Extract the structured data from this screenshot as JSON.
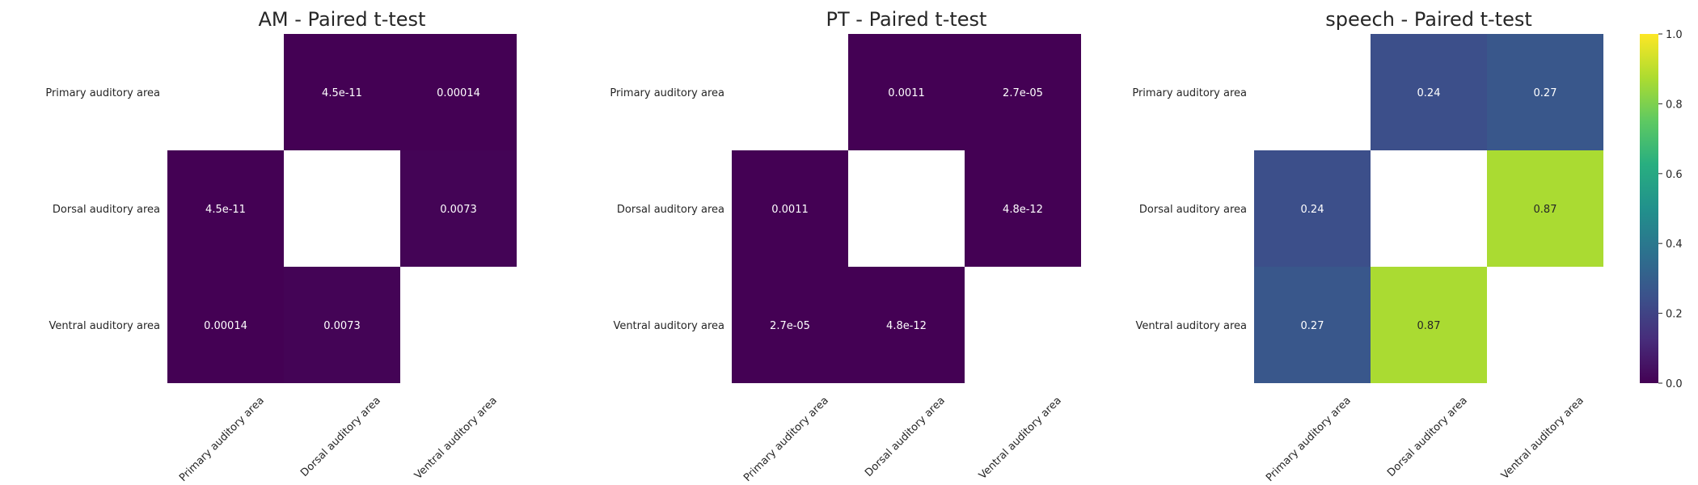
{
  "chart_data": [
    {
      "type": "heatmap",
      "title": "AM - Paired t-test",
      "rows": [
        "Primary auditory area",
        "Dorsal auditory area",
        "Ventral auditory area"
      ],
      "cols": [
        "Primary auditory area",
        "Dorsal auditory area",
        "Ventral auditory area"
      ],
      "values": [
        [
          null,
          4.5e-11,
          0.00014
        ],
        [
          4.5e-11,
          null,
          0.0073
        ],
        [
          0.00014,
          0.0073,
          null
        ]
      ],
      "labels": [
        [
          "",
          "4.5e-11",
          "0.00014"
        ],
        [
          "4.5e-11",
          "",
          "0.0073"
        ],
        [
          "0.00014",
          "0.0073",
          ""
        ]
      ]
    },
    {
      "type": "heatmap",
      "title": "PT - Paired t-test",
      "rows": [
        "Primary auditory area",
        "Dorsal auditory area",
        "Ventral auditory area"
      ],
      "cols": [
        "Primary auditory area",
        "Dorsal auditory area",
        "Ventral auditory area"
      ],
      "values": [
        [
          null,
          0.0011,
          2.7e-05
        ],
        [
          0.0011,
          null,
          4.8e-12
        ],
        [
          2.7e-05,
          4.8e-12,
          null
        ]
      ],
      "labels": [
        [
          "",
          "0.0011",
          "2.7e-05"
        ],
        [
          "0.0011",
          "",
          "4.8e-12"
        ],
        [
          "2.7e-05",
          "4.8e-12",
          ""
        ]
      ]
    },
    {
      "type": "heatmap",
      "title": "speech - Paired t-test",
      "rows": [
        "Primary auditory area",
        "Dorsal auditory area",
        "Ventral auditory area"
      ],
      "cols": [
        "Primary auditory area",
        "Dorsal auditory area",
        "Ventral auditory area"
      ],
      "values": [
        [
          null,
          0.24,
          0.27
        ],
        [
          0.24,
          null,
          0.87
        ],
        [
          0.27,
          0.87,
          null
        ]
      ],
      "labels": [
        [
          "",
          "0.24",
          "0.27"
        ],
        [
          "0.24",
          "",
          "0.87"
        ],
        [
          "0.27",
          "0.87",
          ""
        ]
      ]
    }
  ],
  "colorbar": {
    "colormap": "viridis",
    "range": [
      0.0,
      1.0
    ],
    "ticks": [
      "0.0",
      "0.2",
      "0.4",
      "0.6",
      "0.8",
      "1.0"
    ]
  }
}
